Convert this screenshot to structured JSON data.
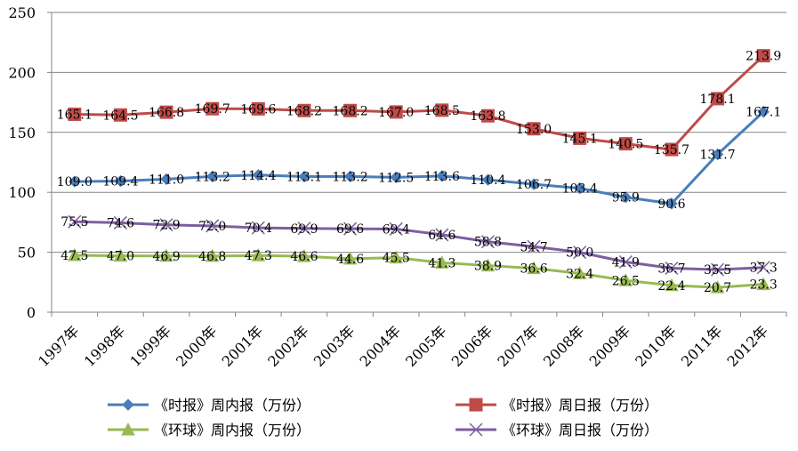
{
  "chart_data": {
    "type": "line",
    "title": "",
    "xlabel": "",
    "ylabel": "",
    "ylim": [
      0,
      250
    ],
    "yticks": [
      0,
      50,
      100,
      150,
      200,
      250
    ],
    "grid": "horizontal",
    "legend_position": "bottom",
    "categories": [
      "1997年",
      "1998年",
      "1999年",
      "2000年",
      "2001年",
      "2002年",
      "2003年",
      "2004年",
      "2005年",
      "2006年",
      "2007年",
      "2008年",
      "2009年",
      "2010年",
      "2011年",
      "2012年"
    ],
    "series": [
      {
        "name": "《时报》周内报（万份）",
        "color": "#4a7ebb",
        "marker": "diamond",
        "values": [
          109.0,
          109.4,
          111.0,
          113.2,
          114.4,
          113.1,
          113.2,
          112.5,
          113.6,
          110.4,
          106.7,
          103.4,
          95.9,
          90.6,
          131.7,
          167.1
        ],
        "labels": [
          "109.0",
          "109.4",
          "111.0",
          "113.2",
          "114.4",
          "113.1",
          "113.2",
          "112.5",
          "113.6",
          "110.4",
          "106.7",
          "103.4",
          "95.9",
          "90.6",
          "131.7",
          "167.1"
        ]
      },
      {
        "name": "《时报》周日报（万份）",
        "color": "#be4b48",
        "marker": "square",
        "values": [
          165.1,
          164.5,
          166.8,
          169.7,
          169.6,
          168.2,
          168.2,
          167.0,
          168.5,
          163.8,
          153.0,
          145.1,
          140.5,
          135.7,
          178.1,
          213.9
        ],
        "labels": [
          "165.1",
          "164.5",
          "166.8",
          "169.7",
          "169.6",
          "168.2",
          "168.2",
          "167.0",
          "168.5",
          "163.8",
          "153.0",
          "145.1",
          "140.5",
          "135.7",
          "178.1",
          "213.9"
        ]
      },
      {
        "name": "《环球》周内报（万份）",
        "color": "#98b954",
        "marker": "triangle",
        "values": [
          47.5,
          47.0,
          46.9,
          46.8,
          47.3,
          46.6,
          44.6,
          45.5,
          41.3,
          38.9,
          36.6,
          32.4,
          26.5,
          22.4,
          20.7,
          23.3
        ],
        "labels": [
          "47.5",
          "47.0",
          "46.9",
          "46.8",
          "47.3",
          "46.6",
          "44.6",
          "45.5",
          "41.3",
          "38.9",
          "36.6",
          "32.4",
          "26.5",
          "22.4",
          "20.7",
          "23.3"
        ]
      },
      {
        "name": "《环球》周日报（万份）",
        "color": "#7d5fa0",
        "marker": "x",
        "values": [
          75.5,
          74.6,
          72.9,
          72.0,
          70.4,
          69.9,
          69.6,
          69.4,
          64.6,
          58.8,
          54.7,
          50.0,
          41.9,
          36.7,
          35.5,
          37.3
        ],
        "labels": [
          "75.5",
          "74.6",
          "72.9",
          "72.0",
          "70.4",
          "69.9",
          "69.6",
          "69.4",
          "64.6",
          "58.8",
          "54.7",
          "50.0",
          "41.9",
          "36.7",
          "35.5",
          "37.3"
        ]
      }
    ]
  }
}
